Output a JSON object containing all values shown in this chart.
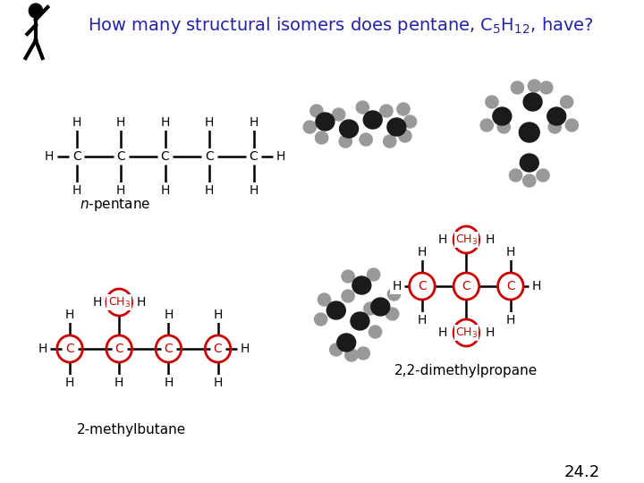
{
  "title": "How many structural isomers does pentane, C$_5$H$_{12}$, have?",
  "title_color": "#2222AA",
  "title_fontsize": 14,
  "bg_color": "#FFFFFF",
  "red_circle_color": "#CC0000",
  "black_color": "#000000",
  "label_npentane": "n-pentane",
  "label_2methyl": "2-methylbutane",
  "label_22dimethyl": "2,2-dimethylpropane",
  "label_page": "24.2",
  "c_dark": "#1A1A1A",
  "h_gray": "#999999",
  "h_light": "#BBBBBB"
}
